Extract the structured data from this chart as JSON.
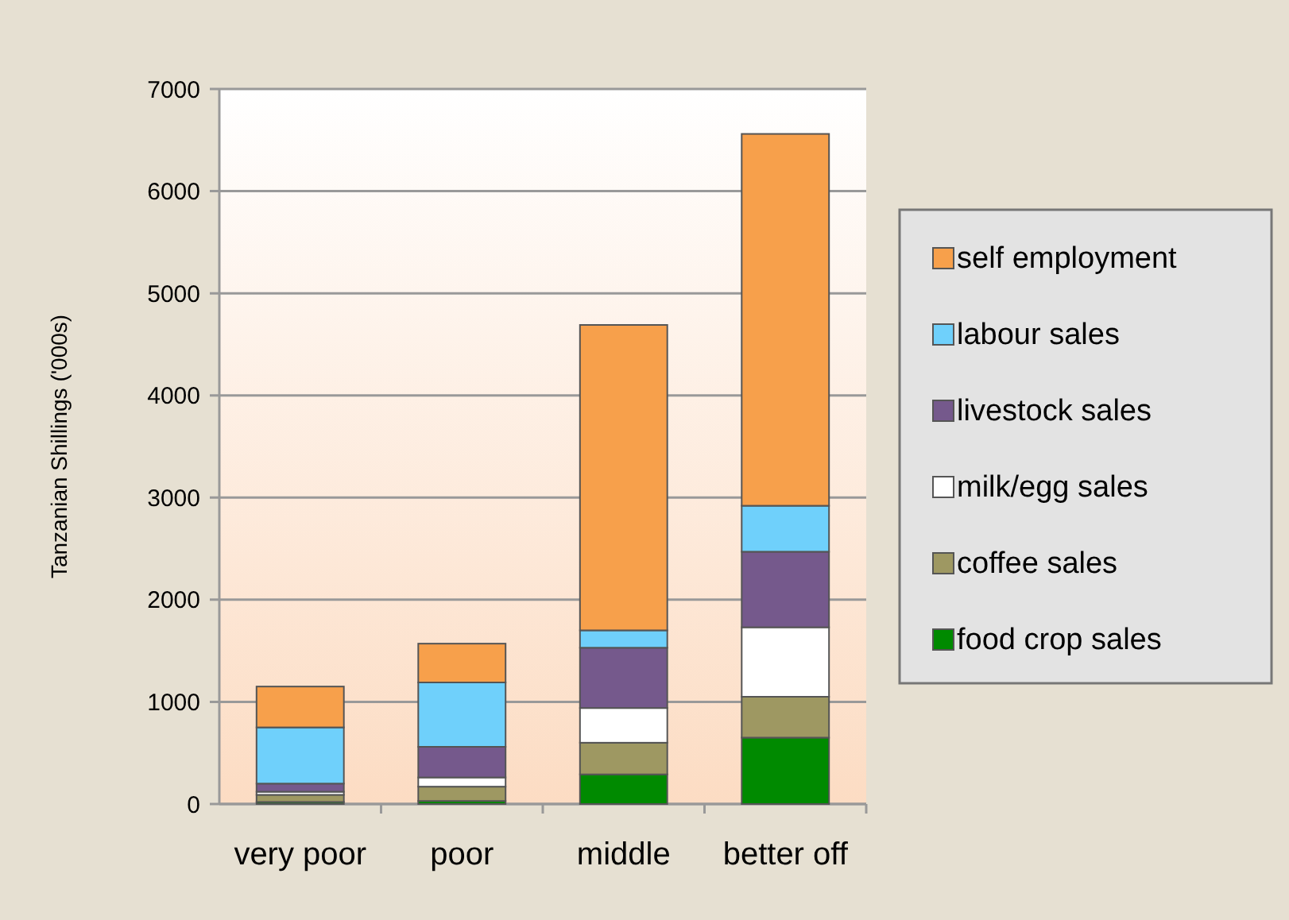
{
  "chart_data": {
    "type": "bar",
    "stacked": true,
    "ylabel": "Tanzanian Shillings ('000s)",
    "categories": [
      "very poor",
      "poor",
      "middle",
      "better off"
    ],
    "series": [
      {
        "name": "food crop sales",
        "color": "#008a00",
        "values": [
          20,
          30,
          290,
          650
        ]
      },
      {
        "name": "coffee sales",
        "color": "#9e9862",
        "values": [
          70,
          140,
          310,
          400
        ]
      },
      {
        "name": "milk/egg sales",
        "color": "#ffffff",
        "values": [
          30,
          90,
          340,
          680
        ]
      },
      {
        "name": "livestock sales",
        "color": "#75598c",
        "values": [
          80,
          300,
          590,
          740
        ]
      },
      {
        "name": "labour sales",
        "color": "#6fd0fb",
        "values": [
          550,
          630,
          170,
          450
        ]
      },
      {
        "name": "self employment",
        "color": "#f7a04b",
        "values": [
          400,
          380,
          2990,
          3640
        ]
      }
    ],
    "ylim": [
      0,
      7000
    ],
    "yticks": [
      0,
      1000,
      2000,
      3000,
      4000,
      5000,
      6000,
      7000
    ],
    "grid": "y",
    "legend": "right"
  }
}
